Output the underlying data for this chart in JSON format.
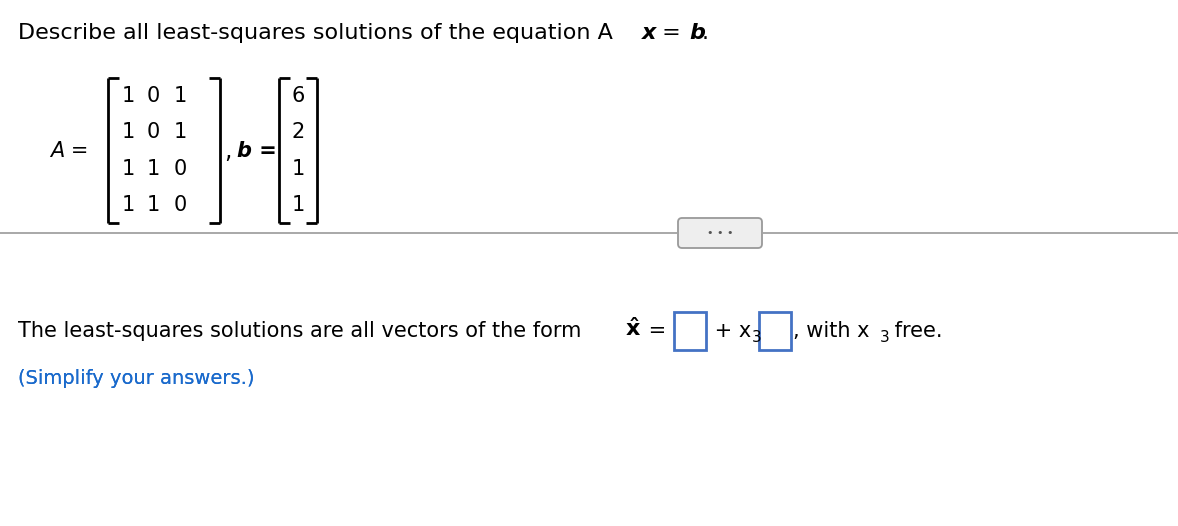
{
  "A_matrix": [
    [
      1,
      0,
      1
    ],
    [
      1,
      0,
      1
    ],
    [
      1,
      1,
      0
    ],
    [
      1,
      1,
      0
    ]
  ],
  "b_vector": [
    6,
    2,
    1,
    1
  ],
  "background_color": "#ffffff",
  "text_color": "#000000",
  "blue_color": "#1a6acc",
  "box_border_color": "#4472c4",
  "divider_color": "#999999",
  "btn_color": "#888888",
  "btn_bg": "#eeeeee"
}
